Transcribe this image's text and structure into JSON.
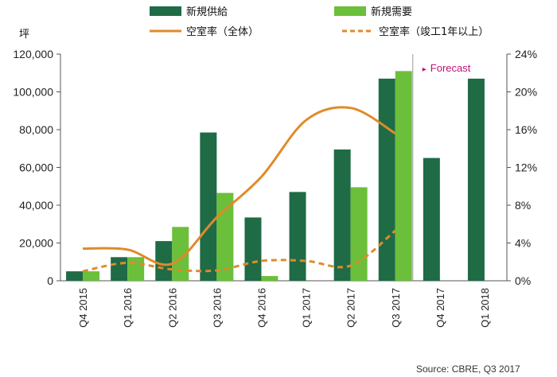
{
  "chart_data": {
    "type": "bar",
    "categories": [
      "Q4 2015",
      "Q1 2016",
      "Q2 2016",
      "Q3 2016",
      "Q4 2016",
      "Q1 2017",
      "Q2 2017",
      "Q3 2017",
      "Q4 2017",
      "Q1 2018"
    ],
    "series": [
      {
        "name": "新規供給",
        "kind": "bar",
        "axis": "left",
        "color": "#1f6b45",
        "values": [
          5000,
          12500,
          21000,
          78500,
          33500,
          47000,
          69500,
          107000,
          65000,
          107000
        ]
      },
      {
        "name": "新規需要",
        "kind": "bar",
        "axis": "left",
        "color": "#6bbf3a",
        "values": [
          5000,
          12500,
          28500,
          46500,
          2500,
          null,
          49500,
          111000,
          null,
          null
        ]
      },
      {
        "name": "空室率（全体）",
        "kind": "line",
        "axis": "right",
        "color": "#e08a2b",
        "dash": "solid",
        "values": [
          3.4,
          3.3,
          1.8,
          6.7,
          11.0,
          17.0,
          18.3,
          15.6,
          null,
          null
        ]
      },
      {
        "name": "空室率（竣工1年以上）",
        "kind": "line",
        "axis": "right",
        "color": "#e08a2b",
        "dash": "dashed",
        "values": [
          1.0,
          1.9,
          1.2,
          1.1,
          2.1,
          2.1,
          1.6,
          5.3,
          null,
          null
        ]
      }
    ],
    "ylabel": "坪",
    "ylim": [
      0,
      120000
    ],
    "yticks": [
      "0",
      "20,000",
      "40,000",
      "60,000",
      "80,000",
      "100,000",
      "120,000"
    ],
    "y2lim": [
      0,
      24
    ],
    "y2ticks": [
      "0%",
      "4%",
      "8%",
      "12%",
      "16%",
      "20%",
      "24%"
    ],
    "forecast_label": "Forecast",
    "forecast_start_index": 8,
    "legend_position": "top",
    "grid": false
  },
  "source": "Source:  CBRE, Q3 2017"
}
